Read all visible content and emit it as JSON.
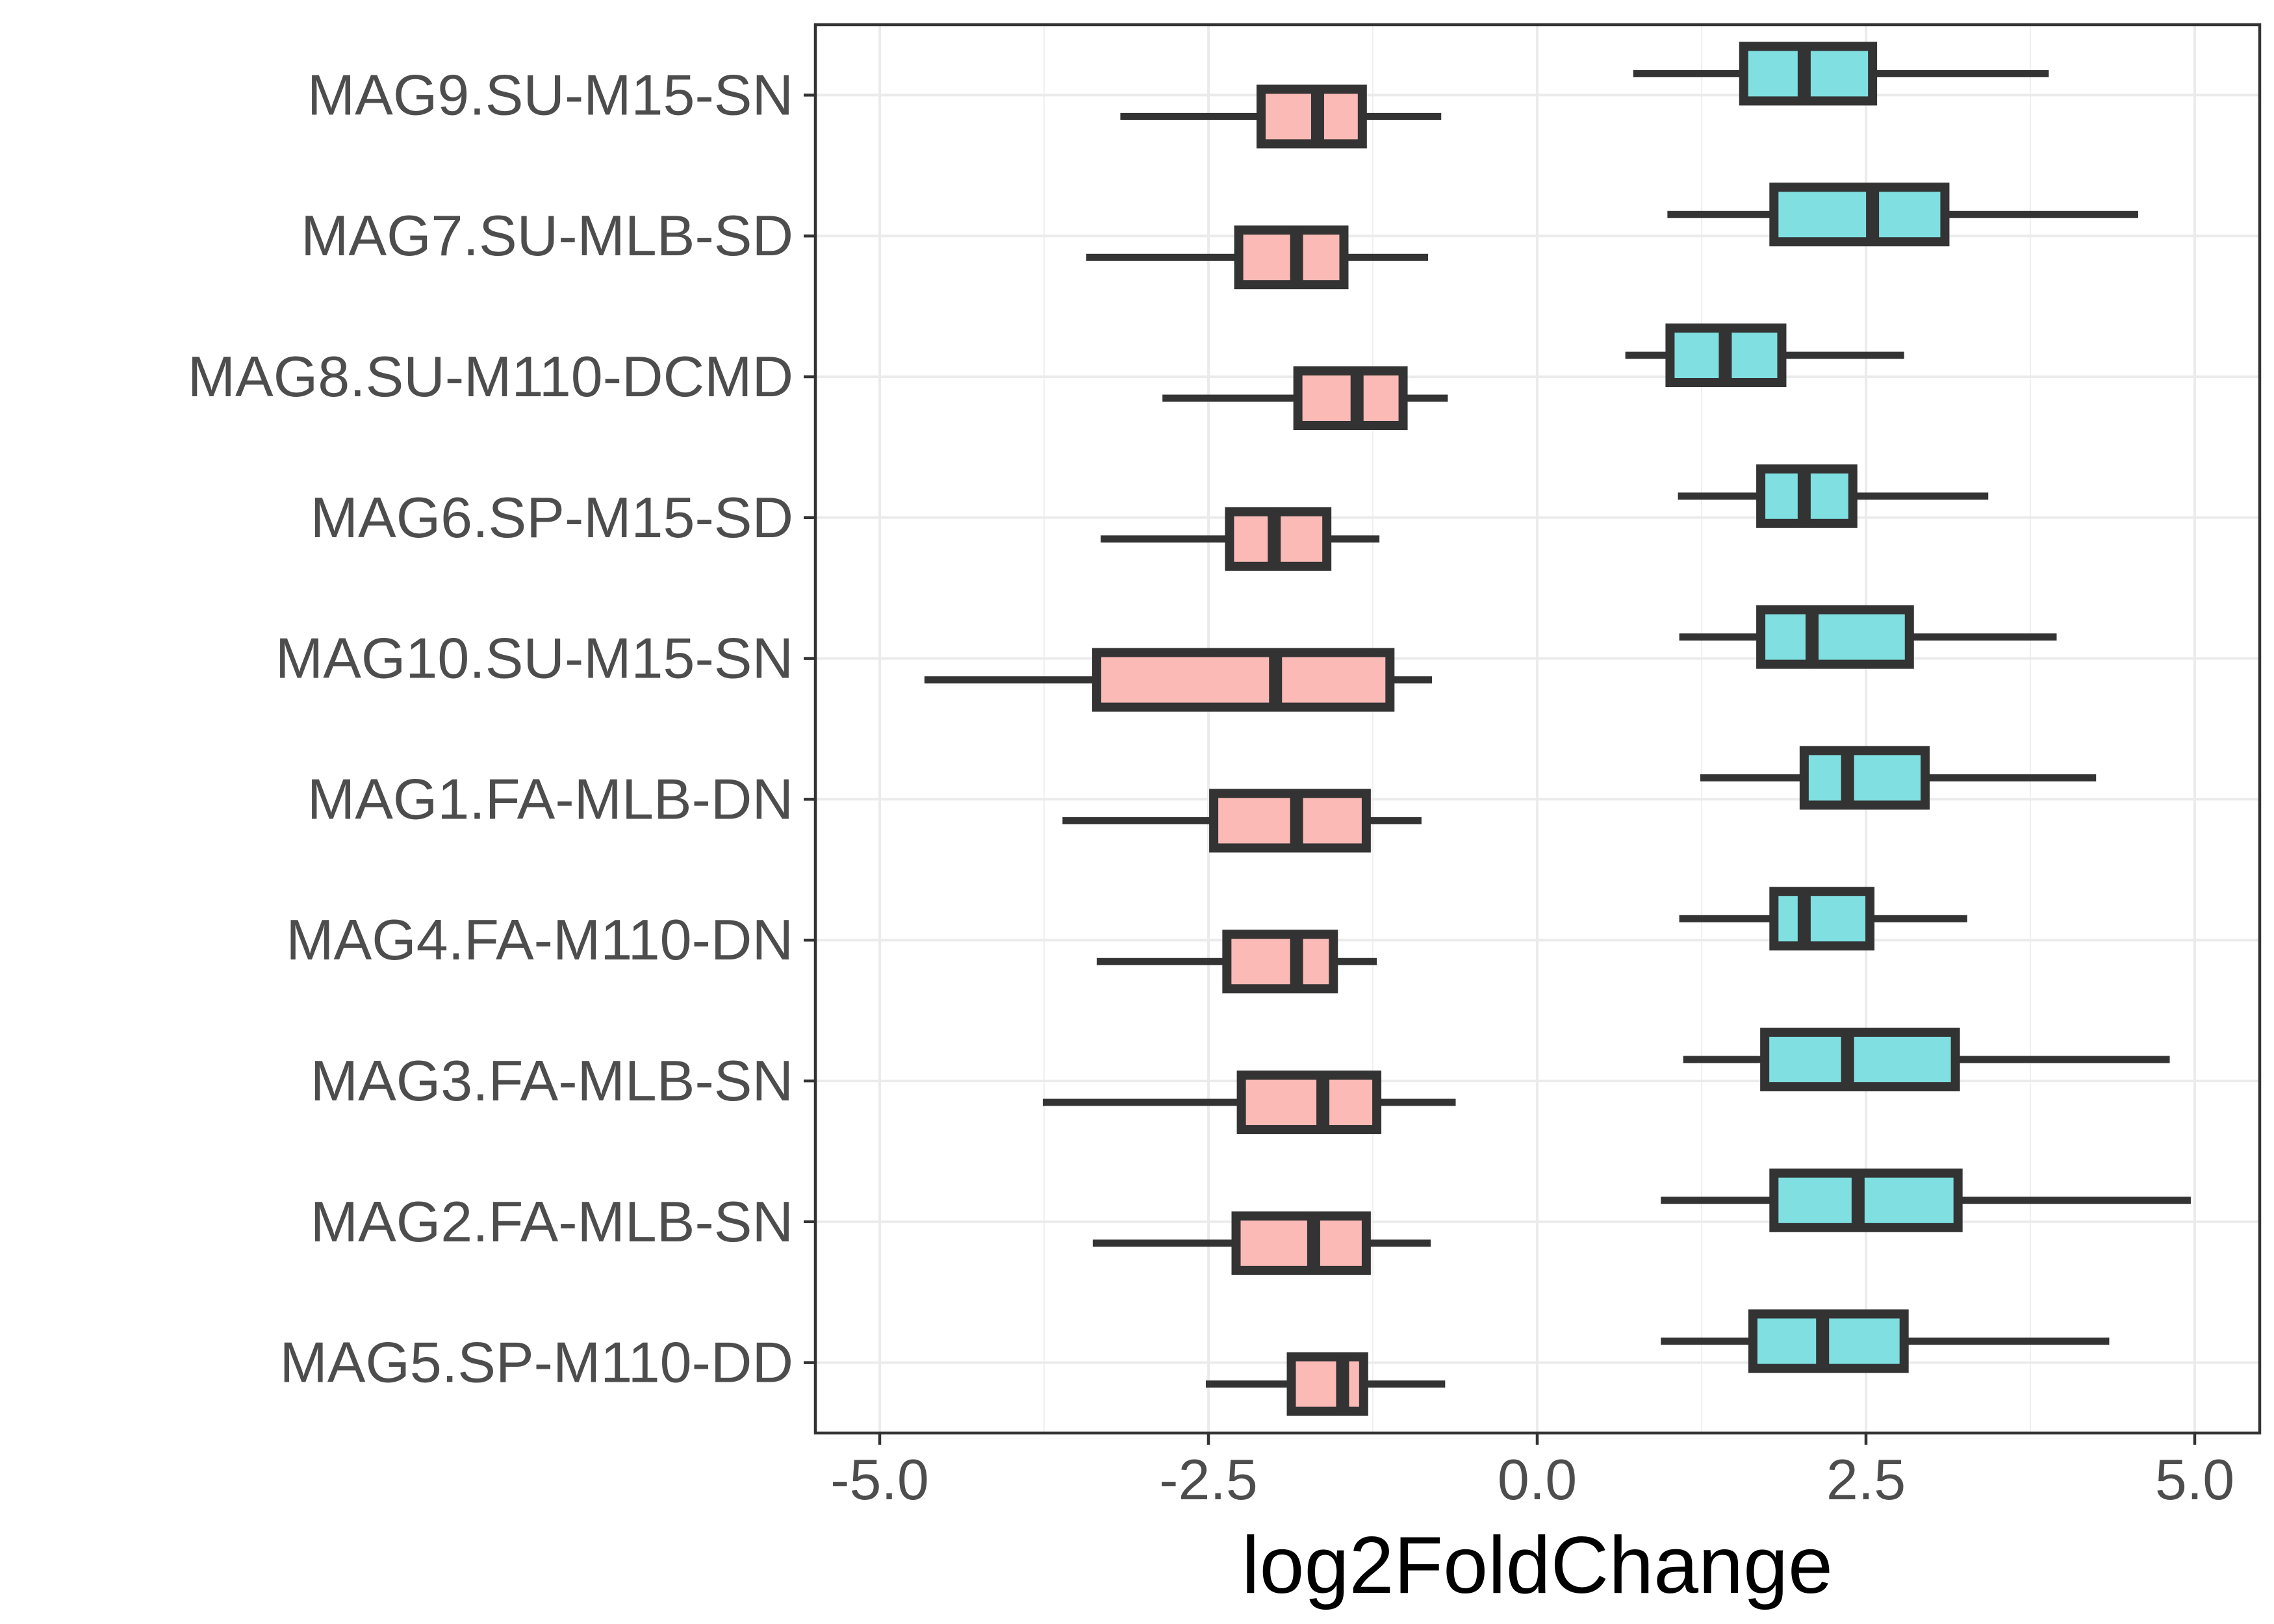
{
  "chart_data": {
    "type": "boxplot",
    "orientation": "horizontal",
    "title": "",
    "xlabel": "log2FoldChange",
    "ylabel": "",
    "xlim": [
      -5.25,
      5.25
    ],
    "x_ticks": [
      -5.0,
      -2.5,
      0.0,
      2.5,
      5.0
    ],
    "x_tick_labels": [
      "-5.0",
      "-2.5",
      "0.0",
      "2.5",
      "5.0"
    ],
    "grid": true,
    "legend": "none",
    "colors": {
      "negative": "#F8766D",
      "positive": "#00BFC4",
      "outline": "#333333",
      "fill_alpha": 0.5
    },
    "categories": [
      "MAG9.SU-M15-SN",
      "MAG7.SU-MLB-SD",
      "MAG8.SU-M110-DCMD",
      "MAG6.SP-M15-SD",
      "MAG10.SU-M15-SN",
      "MAG1.FA-MLB-DN",
      "MAG4.FA-M110-DN",
      "MAG3.FA-MLB-SN",
      "MAG2.FA-MLB-SN",
      "MAG5.SP-M110-DD"
    ],
    "series": [
      {
        "group": "negative",
        "boxes": [
          {
            "category": "MAG9.SU-M15-SN",
            "whisker_low": -3.17,
            "q1": -2.1,
            "median": -1.67,
            "q3": -1.33,
            "whisker_high": -0.73
          },
          {
            "category": "MAG7.SU-MLB-SD",
            "whisker_low": -3.43,
            "q1": -2.27,
            "median": -1.83,
            "q3": -1.47,
            "whisker_high": -0.83
          },
          {
            "category": "MAG8.SU-M110-DCMD",
            "whisker_low": -2.85,
            "q1": -1.82,
            "median": -1.37,
            "q3": -1.02,
            "whisker_high": -0.68
          },
          {
            "category": "MAG6.SP-M15-SD",
            "whisker_low": -3.32,
            "q1": -2.34,
            "median": -2.0,
            "q3": -1.6,
            "whisker_high": -1.2
          },
          {
            "category": "MAG10.SU-M15-SN",
            "whisker_low": -4.66,
            "q1": -3.35,
            "median": -1.99,
            "q3": -1.12,
            "whisker_high": -0.8
          },
          {
            "category": "MAG1.FA-MLB-DN",
            "whisker_low": -3.61,
            "q1": -2.46,
            "median": -1.83,
            "q3": -1.3,
            "whisker_high": -0.88
          },
          {
            "category": "MAG4.FA-M110-DN",
            "whisker_low": -3.35,
            "q1": -2.36,
            "median": -1.83,
            "q3": -1.55,
            "whisker_high": -1.22
          },
          {
            "category": "MAG3.FA-MLB-SN",
            "whisker_low": -3.76,
            "q1": -2.25,
            "median": -1.63,
            "q3": -1.22,
            "whisker_high": -0.62
          },
          {
            "category": "MAG2.FA-MLB-SN",
            "whisker_low": -3.38,
            "q1": -2.29,
            "median": -1.7,
            "q3": -1.3,
            "whisker_high": -0.81
          },
          {
            "category": "MAG5.SP-M110-DD",
            "whisker_low": -2.52,
            "q1": -1.87,
            "median": -1.48,
            "q3": -1.32,
            "whisker_high": -0.7
          }
        ]
      },
      {
        "group": "positive",
        "boxes": [
          {
            "category": "MAG9.SU-M15-SN",
            "whisker_low": 0.73,
            "q1": 1.57,
            "median": 2.03,
            "q3": 2.55,
            "whisker_high": 3.89
          },
          {
            "category": "MAG7.SU-MLB-SD",
            "whisker_low": 0.99,
            "q1": 1.8,
            "median": 2.55,
            "q3": 3.1,
            "whisker_high": 4.57
          },
          {
            "category": "MAG8.SU-M110-DCMD",
            "whisker_low": 0.67,
            "q1": 1.01,
            "median": 1.43,
            "q3": 1.86,
            "whisker_high": 2.79
          },
          {
            "category": "MAG6.SP-M15-SD",
            "whisker_low": 1.07,
            "q1": 1.7,
            "median": 2.03,
            "q3": 2.4,
            "whisker_high": 3.43
          },
          {
            "category": "MAG10.SU-M15-SN",
            "whisker_low": 1.08,
            "q1": 1.7,
            "median": 2.09,
            "q3": 2.83,
            "whisker_high": 3.95
          },
          {
            "category": "MAG1.FA-MLB-DN",
            "whisker_low": 1.24,
            "q1": 2.03,
            "median": 2.36,
            "q3": 2.95,
            "whisker_high": 4.25
          },
          {
            "category": "MAG4.FA-M110-DN",
            "whisker_low": 1.08,
            "q1": 1.8,
            "median": 2.03,
            "q3": 2.53,
            "whisker_high": 3.27
          },
          {
            "category": "MAG3.FA-MLB-SN",
            "whisker_low": 1.11,
            "q1": 1.73,
            "median": 2.36,
            "q3": 3.18,
            "whisker_high": 4.81
          },
          {
            "category": "MAG2.FA-MLB-SN",
            "whisker_low": 0.94,
            "q1": 1.8,
            "median": 2.44,
            "q3": 3.2,
            "whisker_high": 4.97
          },
          {
            "category": "MAG5.SP-M110-DD",
            "whisker_low": 0.94,
            "q1": 1.64,
            "median": 2.17,
            "q3": 2.79,
            "whisker_high": 4.35
          }
        ]
      }
    ]
  }
}
